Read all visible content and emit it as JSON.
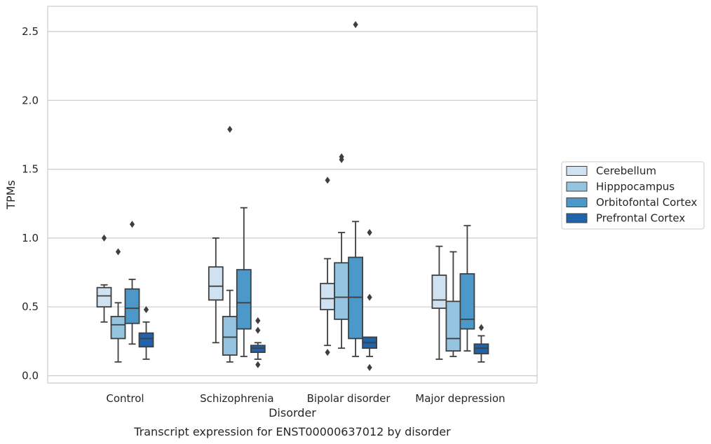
{
  "caption": "Transcript expression for ENST00000637012 by disorder",
  "chart_data": {
    "type": "box",
    "xlabel": "Disorder",
    "ylabel": "TPMs",
    "ylim": [
      -0.05,
      2.68
    ],
    "yticks": [
      "0.0",
      "0.5",
      "1.0",
      "1.5",
      "2.0",
      "2.5"
    ],
    "ytick_values": [
      0,
      0.5,
      1.0,
      1.5,
      2.0,
      2.5
    ],
    "grid": "horizontal",
    "legend_position": "right",
    "categories": [
      "Control",
      "Schizophrenia",
      "Bipolar disorder",
      "Major depression"
    ],
    "series": [
      {
        "name": "Cerebellum",
        "color": "#d0e1f2",
        "boxes": [
          {
            "whislo": 0.39,
            "q1": 0.5,
            "med": 0.58,
            "q3": 0.64,
            "whishi": 0.66,
            "fliers": [
              1.0
            ]
          },
          {
            "whislo": 0.24,
            "q1": 0.55,
            "med": 0.65,
            "q3": 0.79,
            "whishi": 1.0,
            "fliers": []
          },
          {
            "whislo": 0.22,
            "q1": 0.48,
            "med": 0.56,
            "q3": 0.67,
            "whishi": 0.85,
            "fliers": [
              0.17,
              1.42
            ]
          },
          {
            "whislo": 0.12,
            "q1": 0.49,
            "med": 0.55,
            "q3": 0.73,
            "whishi": 0.94,
            "fliers": []
          }
        ]
      },
      {
        "name": "Hipppocampus",
        "color": "#94c4df",
        "boxes": [
          {
            "whislo": 0.1,
            "q1": 0.27,
            "med": 0.37,
            "q3": 0.43,
            "whishi": 0.53,
            "fliers": [
              0.9
            ]
          },
          {
            "whislo": 0.1,
            "q1": 0.15,
            "med": 0.28,
            "q3": 0.43,
            "whishi": 0.62,
            "fliers": [
              1.79
            ]
          },
          {
            "whislo": 0.2,
            "q1": 0.41,
            "med": 0.57,
            "q3": 0.82,
            "whishi": 1.04,
            "fliers": [
              1.57,
              1.59
            ]
          },
          {
            "whislo": 0.14,
            "q1": 0.18,
            "med": 0.27,
            "q3": 0.54,
            "whishi": 0.9,
            "fliers": []
          }
        ]
      },
      {
        "name": "Orbitofontal Cortex",
        "color": "#4b98c9",
        "boxes": [
          {
            "whislo": 0.23,
            "q1": 0.38,
            "med": 0.49,
            "q3": 0.63,
            "whishi": 0.7,
            "fliers": [
              1.1
            ]
          },
          {
            "whislo": 0.14,
            "q1": 0.34,
            "med": 0.53,
            "q3": 0.77,
            "whishi": 1.22,
            "fliers": []
          },
          {
            "whislo": 0.14,
            "q1": 0.27,
            "med": 0.57,
            "q3": 0.86,
            "whishi": 1.12,
            "fliers": [
              2.55
            ]
          },
          {
            "whislo": 0.18,
            "q1": 0.34,
            "med": 0.41,
            "q3": 0.74,
            "whishi": 1.09,
            "fliers": []
          }
        ]
      },
      {
        "name": "Prefrontal Cortex",
        "color": "#2163aa",
        "boxes": [
          {
            "whislo": 0.12,
            "q1": 0.21,
            "med": 0.27,
            "q3": 0.31,
            "whishi": 0.39,
            "fliers": [
              0.48
            ]
          },
          {
            "whislo": 0.12,
            "q1": 0.17,
            "med": 0.2,
            "q3": 0.22,
            "whishi": 0.24,
            "fliers": [
              0.08,
              0.33,
              0.4
            ]
          },
          {
            "whislo": 0.14,
            "q1": 0.2,
            "med": 0.24,
            "q3": 0.28,
            "whishi": 0.28,
            "fliers": [
              0.06,
              0.57,
              1.04
            ]
          },
          {
            "whislo": 0.1,
            "q1": 0.16,
            "med": 0.2,
            "q3": 0.23,
            "whishi": 0.29,
            "fliers": [
              0.35
            ]
          }
        ]
      }
    ]
  }
}
